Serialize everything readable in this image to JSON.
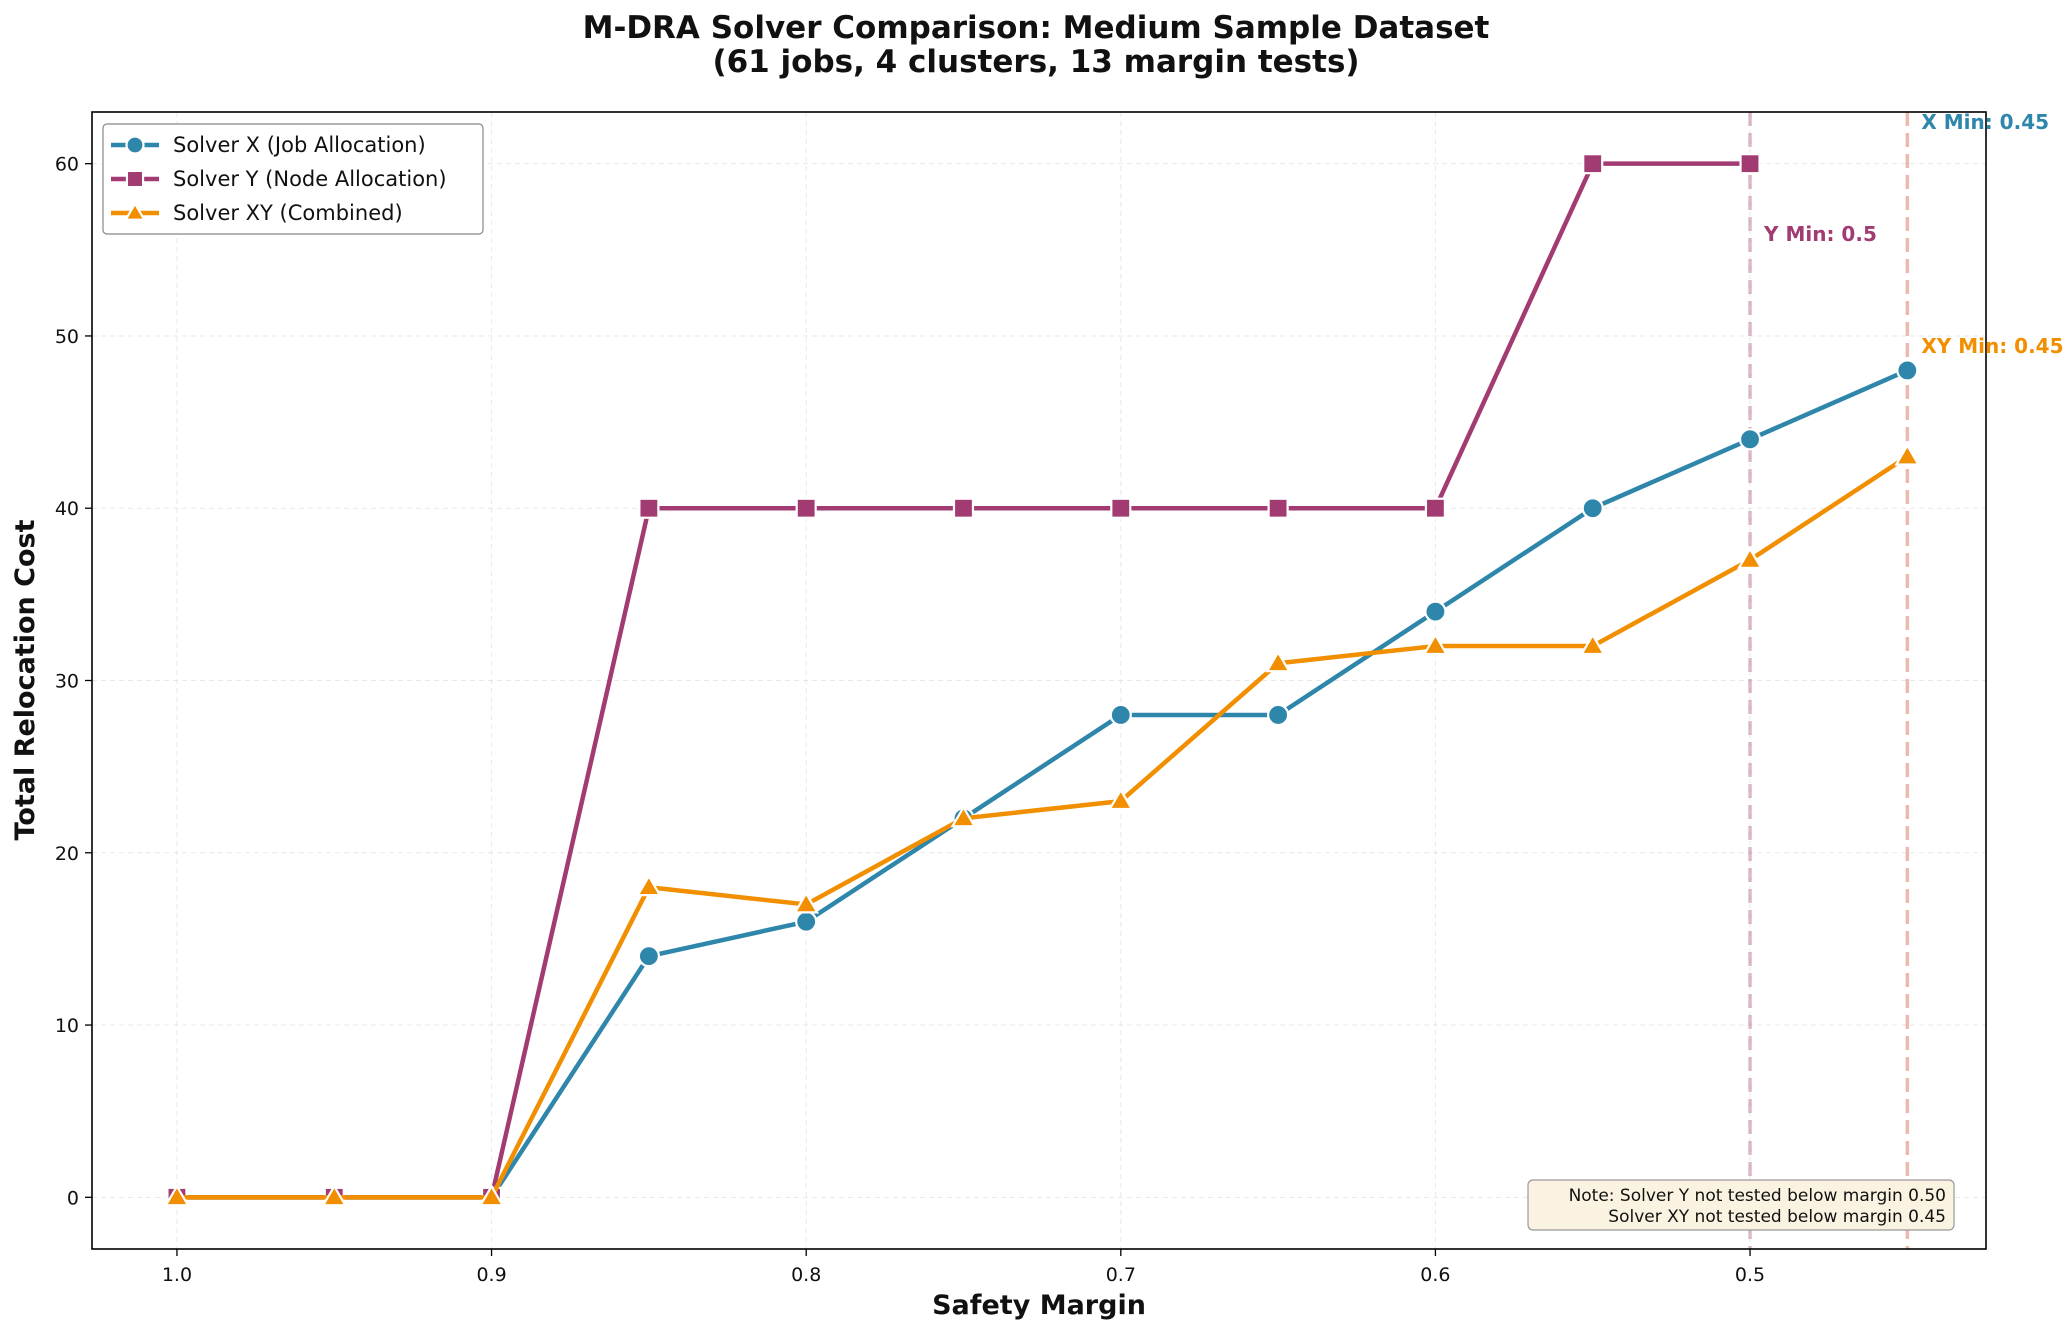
{
  "chart_data": {
    "type": "line",
    "title": "M-DRA Solver Comparison: Medium Sample Dataset",
    "subtitle": "(61 jobs, 4 clusters, 13 margin tests)",
    "xlabel": "Safety Margin",
    "ylabel": "Total Relocation Cost",
    "x_inverted": true,
    "xlim": [
      1.027,
      0.425
    ],
    "ylim": [
      -3,
      63
    ],
    "x_ticks": [
      1.0,
      0.9,
      0.8,
      0.7,
      0.6,
      0.5
    ],
    "x_tick_labels": [
      "1.0",
      "0.9",
      "0.8",
      "0.7",
      "0.6",
      "0.5"
    ],
    "y_ticks": [
      0,
      10,
      20,
      30,
      40,
      50,
      60
    ],
    "y_tick_labels": [
      "0",
      "10",
      "20",
      "30",
      "40",
      "50",
      "60"
    ],
    "grid": true,
    "legend_position": "top-left",
    "series": [
      {
        "name": "Solver X (Job Allocation)",
        "color": "#2e86ab",
        "marker": "circle",
        "x": [
          1.0,
          0.95,
          0.9,
          0.85,
          0.8,
          0.75,
          0.7,
          0.65,
          0.6,
          0.55,
          0.5,
          0.45
        ],
        "values": [
          0,
          0,
          0,
          14,
          16,
          22,
          28,
          28,
          34,
          40,
          44,
          48
        ]
      },
      {
        "name": "Solver Y (Node Allocation)",
        "color": "#a23b72",
        "marker": "square",
        "x": [
          1.0,
          0.95,
          0.9,
          0.85,
          0.8,
          0.75,
          0.7,
          0.65,
          0.6,
          0.55,
          0.5
        ],
        "values": [
          0,
          0,
          0,
          40,
          40,
          40,
          40,
          40,
          40,
          60,
          60
        ]
      },
      {
        "name": "Solver XY (Combined)",
        "color": "#f18f01",
        "marker": "triangle",
        "x": [
          1.0,
          0.95,
          0.9,
          0.85,
          0.8,
          0.75,
          0.7,
          0.65,
          0.6,
          0.55,
          0.5,
          0.45
        ],
        "values": [
          0,
          0,
          0,
          18,
          17,
          22,
          23,
          31,
          32,
          32,
          37,
          43
        ]
      }
    ],
    "vlines": [
      {
        "x": 0.5,
        "color": "#a23b72"
      },
      {
        "x": 0.45,
        "color": "#c73e1d"
      }
    ],
    "annotations": [
      {
        "text": "X Min: 0.45",
        "color": "#2e86ab",
        "x": 0.45,
        "y": 62
      },
      {
        "text": "Y Min: 0.5",
        "color": "#a23b72",
        "x": 0.5,
        "y": 55.5
      },
      {
        "text": "XY Min: 0.45",
        "color": "#f18f01",
        "x": 0.45,
        "y": 49
      }
    ],
    "note": {
      "lines": [
        "Note: Solver Y not tested below margin 0.50",
        "Solver XY not tested below margin 0.45"
      ]
    }
  }
}
